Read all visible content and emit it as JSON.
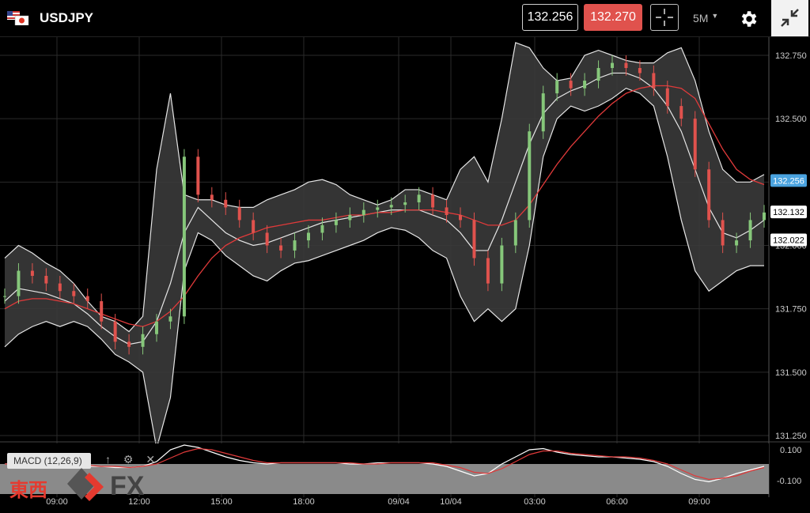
{
  "header": {
    "symbol": "USDJPY",
    "bid": "132.256",
    "ask": "132.270",
    "timeframe": "5M",
    "icons": [
      "us-flag-icon",
      "jp-flag-icon",
      "crosshair-icon",
      "chevron-down-icon",
      "gear-icon",
      "collapse-icon"
    ]
  },
  "macd": {
    "label": "MACD (12,26,9)",
    "icons": [
      "arrow-up-icon",
      "gear-icon",
      "close-icon"
    ],
    "ticks": [
      "0.100",
      "-0.100"
    ]
  },
  "watermark": {
    "text": "東西",
    "fx": "FX"
  },
  "colors": {
    "up": "#86c77a",
    "down": "#e0524d",
    "ma": "#e03a3a",
    "band": "#3a3a3a",
    "bid_tag": "#4aa3df",
    "ask": "#e0524d"
  },
  "chart_data": {
    "type": "candlestick",
    "ylim": [
      131.25,
      132.75
    ],
    "y_ticks": [
      "132.750",
      "132.500",
      "132.250",
      "132.000",
      "131.750",
      "131.500",
      "131.250"
    ],
    "x_ticks": [
      "09:00",
      "12:00",
      "15:00",
      "18:00",
      "09/04",
      "10/04",
      "03:00",
      "06:00",
      "09:00"
    ],
    "price_tags": [
      {
        "label": "132.256",
        "value": 132.256,
        "style": "bid"
      },
      {
        "label": "132.132",
        "value": 132.132,
        "style": "plain"
      },
      {
        "label": "132.022",
        "value": 132.022,
        "style": "plain"
      }
    ],
    "series": {
      "close": [
        131.8,
        131.9,
        131.88,
        131.85,
        131.82,
        131.8,
        131.78,
        131.7,
        131.62,
        131.6,
        131.65,
        131.7,
        131.72,
        132.35,
        132.2,
        132.18,
        132.15,
        132.1,
        132.05,
        132.0,
        131.98,
        132.02,
        132.05,
        132.08,
        132.1,
        132.12,
        132.14,
        132.15,
        132.16,
        132.17,
        132.2,
        132.15,
        132.12,
        132.1,
        131.95,
        131.85,
        132.0,
        132.1,
        132.45,
        132.6,
        132.65,
        132.62,
        132.65,
        132.7,
        132.72,
        132.7,
        132.68,
        132.62,
        132.55,
        132.5,
        132.3,
        132.1,
        132.0,
        132.02,
        132.1,
        132.13
      ],
      "upper": [
        131.95,
        132.0,
        131.97,
        131.93,
        131.9,
        131.85,
        131.78,
        131.72,
        131.7,
        131.66,
        131.72,
        132.3,
        132.6,
        132.2,
        132.18,
        132.18,
        132.16,
        132.15,
        132.15,
        132.18,
        132.2,
        132.22,
        132.25,
        132.26,
        132.24,
        132.2,
        132.18,
        132.16,
        132.18,
        132.22,
        132.22,
        132.2,
        132.18,
        132.3,
        132.35,
        132.25,
        132.5,
        132.8,
        132.78,
        132.7,
        132.65,
        132.66,
        132.75,
        132.77,
        132.75,
        132.73,
        132.72,
        132.72,
        132.76,
        132.78,
        132.65,
        132.45,
        132.3,
        132.25,
        132.25,
        132.28
      ],
      "middle": [
        131.78,
        131.83,
        131.82,
        131.81,
        131.79,
        131.77,
        131.73,
        131.68,
        131.64,
        131.61,
        131.62,
        131.7,
        131.85,
        132.05,
        132.15,
        132.1,
        132.05,
        132.02,
        132.0,
        132.01,
        132.03,
        132.05,
        132.07,
        132.09,
        132.1,
        132.11,
        132.12,
        132.13,
        132.14,
        132.14,
        132.14,
        132.12,
        132.1,
        132.05,
        131.98,
        131.98,
        132.1,
        132.25,
        132.4,
        132.52,
        132.58,
        132.61,
        132.63,
        132.66,
        132.68,
        132.68,
        132.66,
        132.62,
        132.55,
        132.45,
        132.3,
        132.15,
        132.05,
        132.03,
        132.06,
        132.1
      ],
      "lower": [
        131.6,
        131.65,
        131.68,
        131.7,
        131.68,
        131.7,
        131.68,
        131.63,
        131.57,
        131.54,
        131.5,
        131.2,
        131.4,
        131.9,
        132.05,
        132.02,
        131.96,
        131.92,
        131.88,
        131.86,
        131.9,
        131.93,
        131.94,
        131.96,
        131.98,
        132.0,
        132.02,
        132.05,
        132.07,
        132.06,
        132.03,
        131.98,
        131.95,
        131.8,
        131.7,
        131.75,
        131.7,
        131.75,
        132.0,
        132.35,
        132.5,
        132.55,
        132.53,
        132.55,
        132.58,
        132.62,
        132.6,
        132.55,
        132.35,
        132.1,
        131.9,
        131.82,
        131.86,
        131.9,
        131.92,
        131.92
      ],
      "ma": [
        131.75,
        131.78,
        131.79,
        131.79,
        131.78,
        131.77,
        131.75,
        131.73,
        131.71,
        131.69,
        131.68,
        131.7,
        131.74,
        131.8,
        131.88,
        131.95,
        132.0,
        132.03,
        132.05,
        132.07,
        132.08,
        132.09,
        132.1,
        132.1,
        132.11,
        132.12,
        132.12,
        132.13,
        132.13,
        132.14,
        132.14,
        132.14,
        132.13,
        132.12,
        132.1,
        132.08,
        132.08,
        132.1,
        132.16,
        132.24,
        132.32,
        132.39,
        132.45,
        132.51,
        132.56,
        132.6,
        132.62,
        132.63,
        132.63,
        132.62,
        132.58,
        132.48,
        132.38,
        132.3,
        132.26,
        132.24
      ]
    },
    "macd": {
      "macd": [
        0,
        0.01,
        0.01,
        0.0,
        -0.01,
        -0.01,
        -0.02,
        -0.02,
        -0.03,
        -0.03,
        -0.02,
        0.02,
        0.12,
        0.16,
        0.14,
        0.1,
        0.06,
        0.03,
        0.01,
        0.0,
        0.01,
        0.01,
        0.01,
        0.01,
        0.01,
        0.0,
        0.0,
        0.01,
        0.01,
        0.01,
        0.01,
        0.0,
        -0.02,
        -0.06,
        -0.1,
        -0.08,
        0.0,
        0.06,
        0.12,
        0.13,
        0.1,
        0.08,
        0.07,
        0.06,
        0.06,
        0.05,
        0.04,
        0.02,
        -0.02,
        -0.08,
        -0.13,
        -0.15,
        -0.12,
        -0.08,
        -0.05,
        -0.02
      ],
      "signal": [
        0,
        0.0,
        0.01,
        0.01,
        0.0,
        -0.01,
        -0.01,
        -0.02,
        -0.02,
        -0.03,
        -0.02,
        0.0,
        0.05,
        0.1,
        0.13,
        0.12,
        0.09,
        0.06,
        0.03,
        0.01,
        0.01,
        0.01,
        0.01,
        0.01,
        0.01,
        0.01,
        0.0,
        0.0,
        0.01,
        0.01,
        0.01,
        0.01,
        -0.01,
        -0.03,
        -0.07,
        -0.08,
        -0.04,
        0.02,
        0.08,
        0.11,
        0.11,
        0.09,
        0.08,
        0.07,
        0.06,
        0.06,
        0.05,
        0.03,
        0.0,
        -0.05,
        -0.1,
        -0.13,
        -0.12,
        -0.1,
        -0.06,
        -0.03
      ]
    }
  }
}
